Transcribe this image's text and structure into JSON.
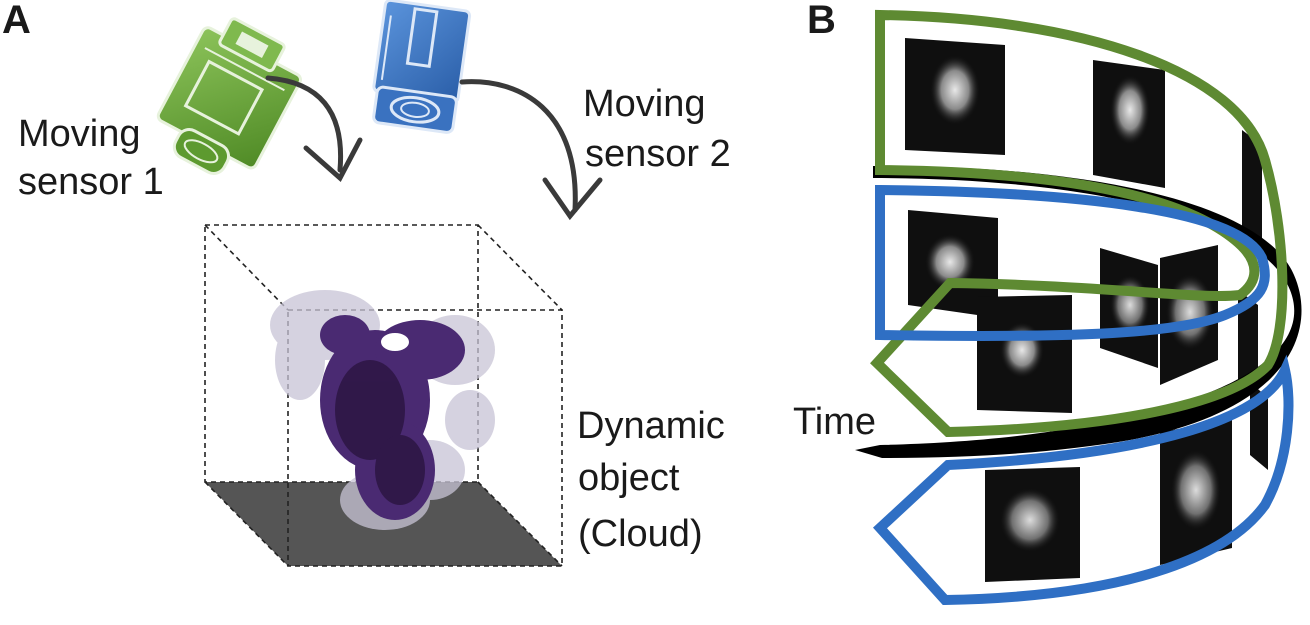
{
  "panels": {
    "a": "A",
    "b": "B"
  },
  "labels": {
    "sensor1": [
      "Moving",
      "sensor 1"
    ],
    "sensor2": [
      "Moving",
      "sensor 2"
    ],
    "object": [
      "Dynamic",
      "object",
      "(Cloud)"
    ],
    "time": "Time"
  },
  "colors": {
    "sensor1": "#6aa23a",
    "sensor2": "#3d74c4",
    "time": "#000000",
    "cloud_dark": "#3a1e5c",
    "cloud_light": "#c8c4d6",
    "floor": "#555555"
  },
  "icons": {
    "sensor1": "camera-icon",
    "sensor2": "camera-icon"
  }
}
